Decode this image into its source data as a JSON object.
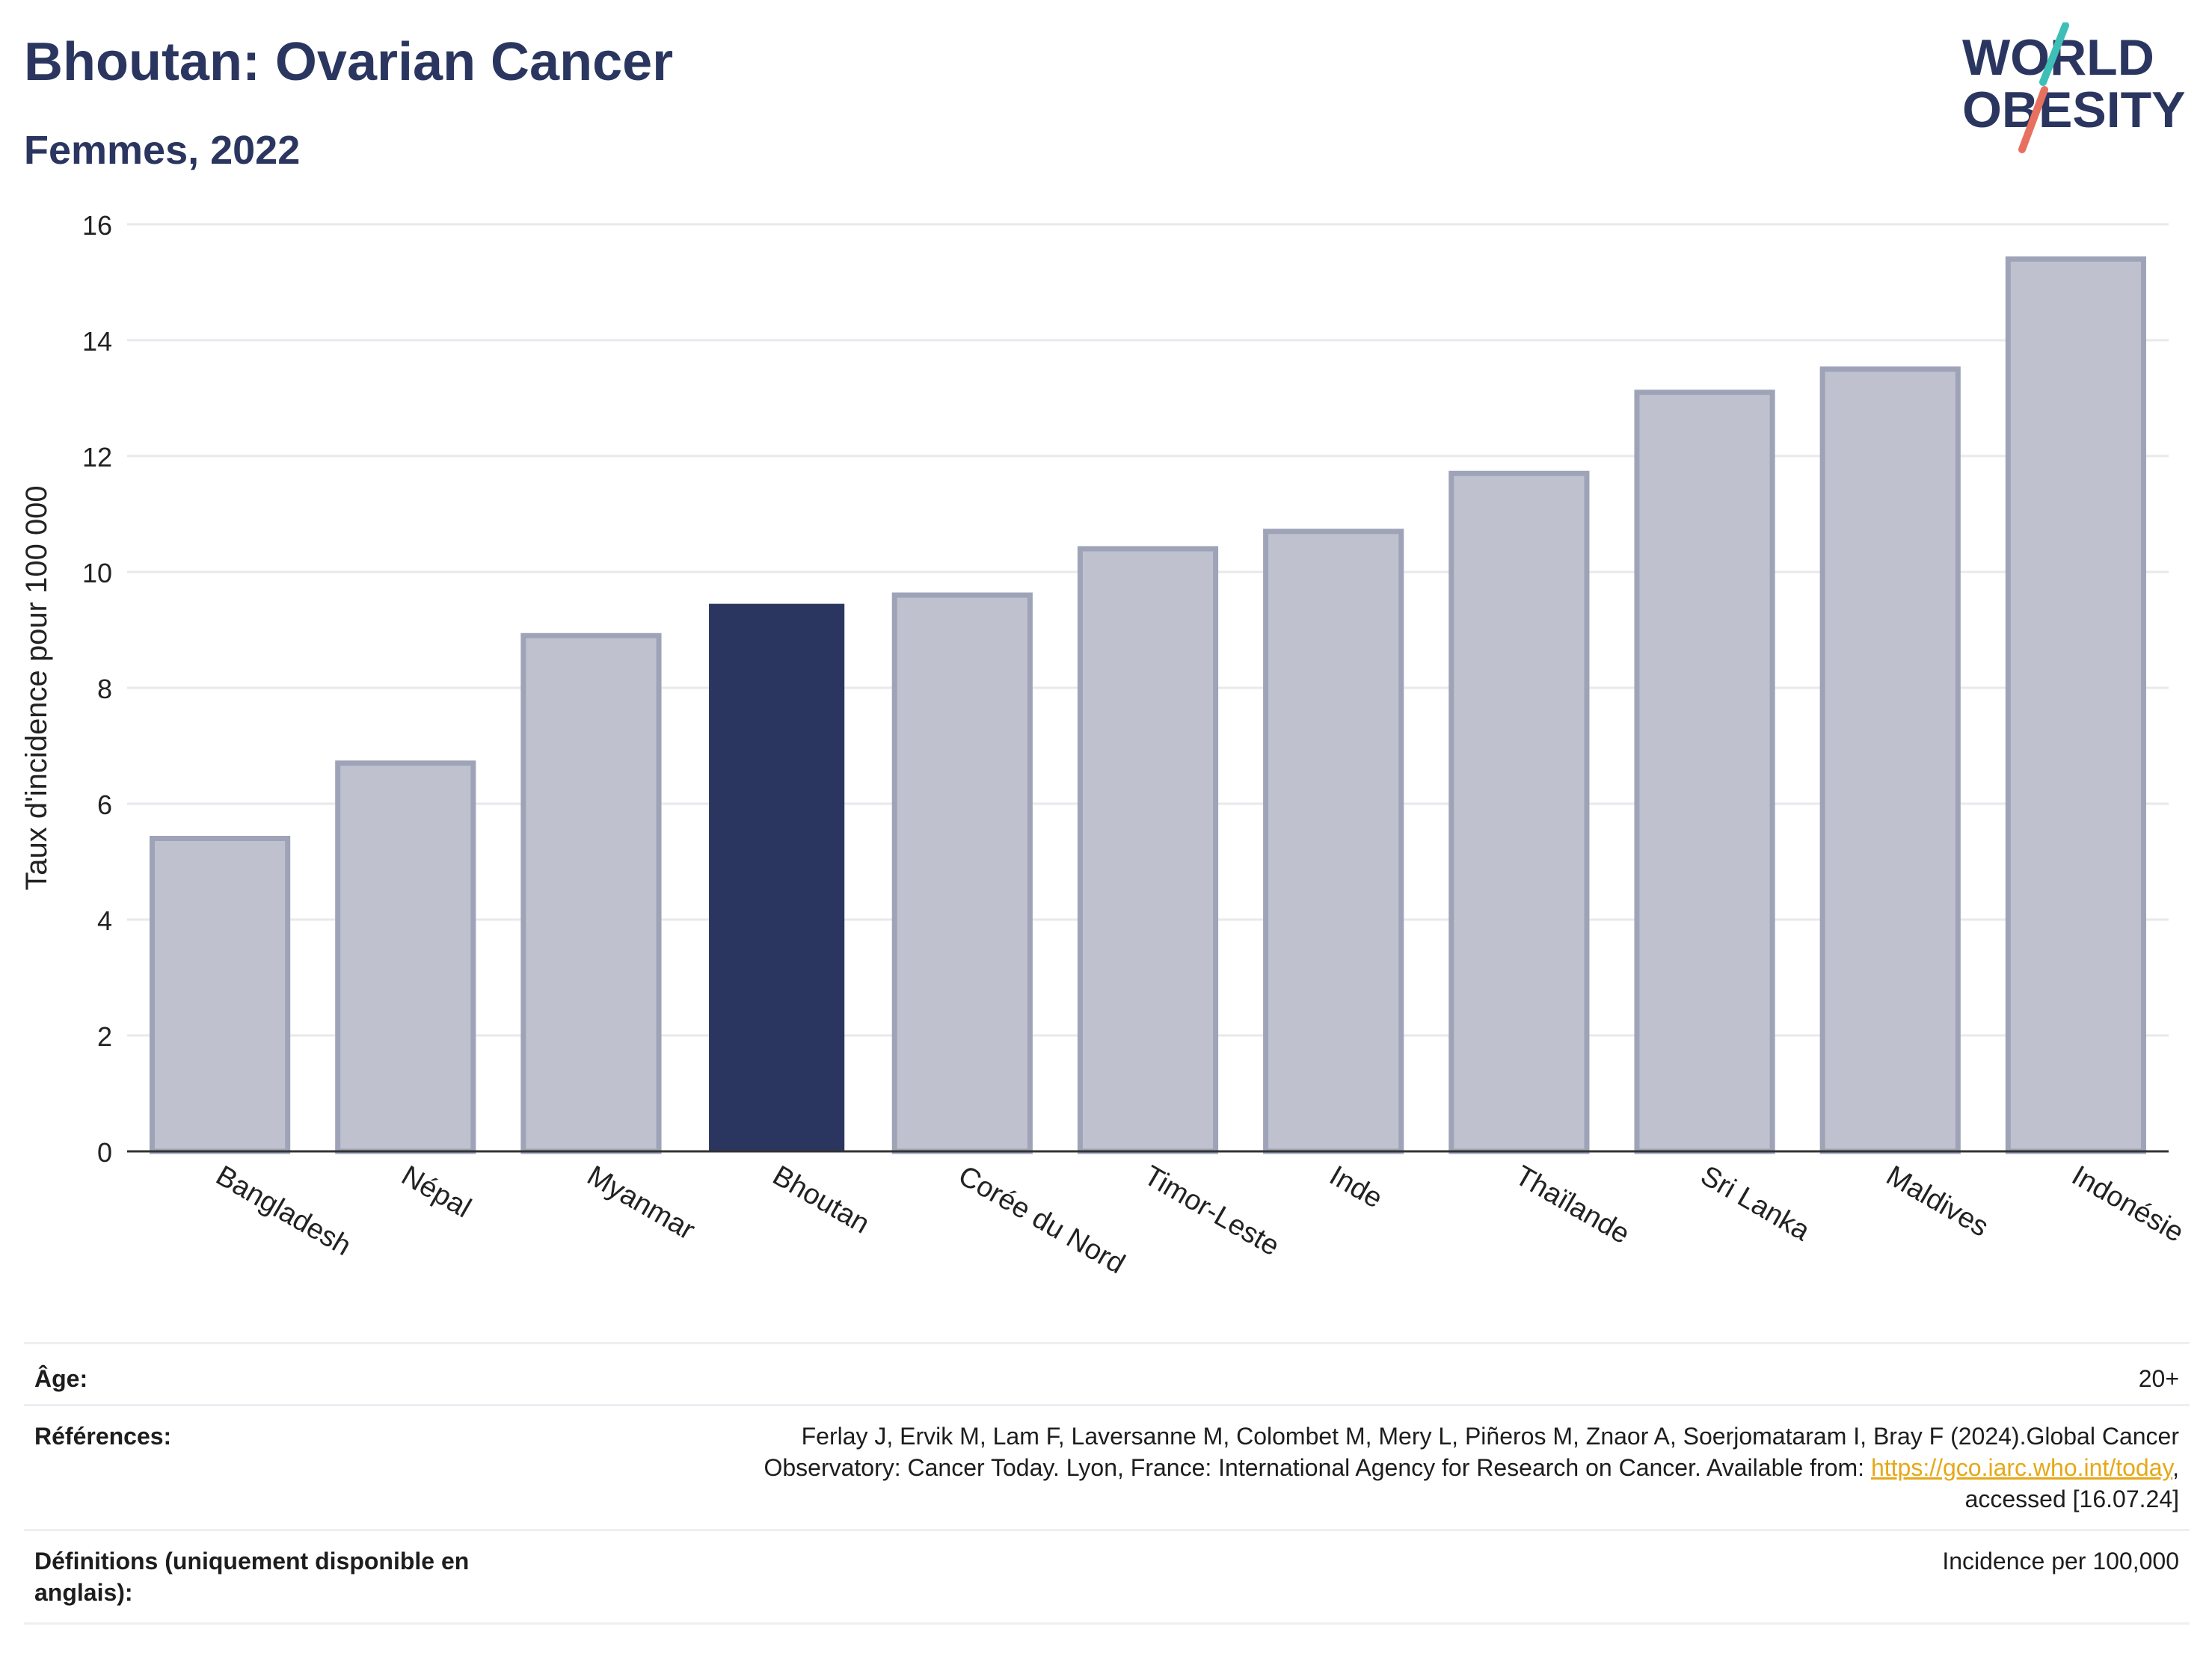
{
  "header": {
    "title": "Bhoutan: Ovarian Cancer",
    "subtitle": "Femmes, 2022",
    "logo_line1": "WORLD",
    "logo_line2": "OBESITY"
  },
  "chart_data": {
    "type": "bar",
    "ylabel": "Taux d'incidence pour 100 000",
    "xlabel": "",
    "ylim": [
      0,
      16
    ],
    "yticks": [
      0,
      2,
      4,
      6,
      8,
      10,
      12,
      14,
      16
    ],
    "grid": true,
    "categories": [
      "Bangladesh",
      "Népal",
      "Myanmar",
      "Bhoutan",
      "Corée du Nord",
      "Timor-Leste",
      "Inde",
      "Thaïlande",
      "Sri Lanka",
      "Maldives",
      "Indonésie"
    ],
    "values": [
      5.4,
      6.7,
      8.9,
      9.45,
      9.6,
      10.4,
      10.7,
      11.7,
      13.1,
      13.5,
      15.4
    ],
    "highlight": "Bhoutan",
    "colors": {
      "highlight": "#2b3660",
      "other_fill": "#bfc2ce",
      "other_stroke": "#9ea3b8",
      "grid": "#e8e8ee",
      "axis": "#333333"
    }
  },
  "meta": {
    "age_label": "Âge:",
    "age_value": "20+",
    "refs_label": "Références:",
    "refs_line1": "Ferlay J, Ervik M, Lam F, Laversanne M, Colombet M, Mery L, Piñeros M, Znaor A, Soerjomataram I, Bray F (2024).Global Cancer",
    "refs_line2": "Observatory: Cancer Today. Lyon, France: International Agency for Research on Cancer. Available from: ",
    "refs_link": "https://gco.iarc.who.int/today",
    "refs_line2_end": ",",
    "refs_line3": "accessed [16.07.24]",
    "defs_label_line1": "Définitions (uniquement disponible en",
    "defs_label_line2": "anglais):",
    "defs_value": "Incidence per 100,000"
  }
}
